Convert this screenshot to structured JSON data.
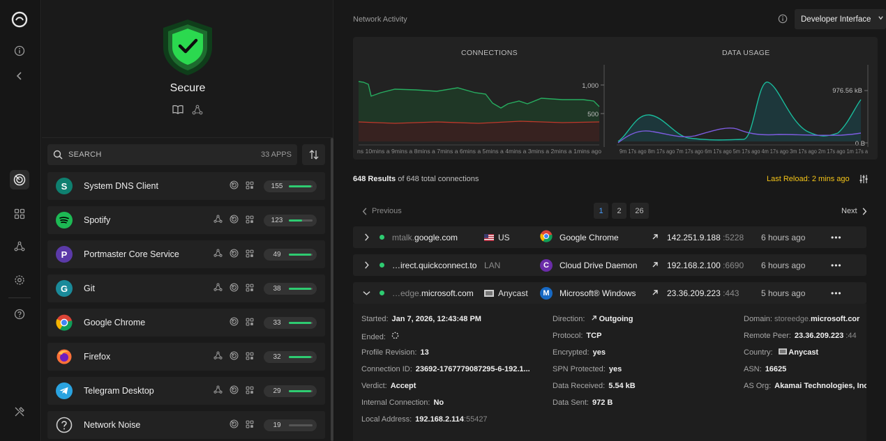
{
  "sidebar": {
    "icons": [
      "logo-icon",
      "info-icon",
      "collapse-icon",
      "monitor-icon",
      "apps-icon",
      "network-icon",
      "settings-icon",
      "help-icon",
      "tools-icon"
    ]
  },
  "panel": {
    "status": "Secure",
    "search_placeholder": "SEARCH",
    "app_count": "33 APPS",
    "apps": [
      {
        "name": "System DNS Client",
        "count": "155",
        "fill": 0.95,
        "letter": "S",
        "color": "#0f8070"
      },
      {
        "name": "Spotify",
        "count": "123",
        "fill": 0.55,
        "letter": "",
        "color": "#1db954"
      },
      {
        "name": "Portmaster Core Service",
        "count": "49",
        "fill": 0.95,
        "letter": "P",
        "color": "#5b3aa8"
      },
      {
        "name": "Git",
        "count": "38",
        "fill": 0.95,
        "letter": "G",
        "color": "#1a8a9a"
      },
      {
        "name": "Google Chrome",
        "count": "33",
        "fill": 0.95,
        "letter": "",
        "color": "#ea4335"
      },
      {
        "name": "Firefox",
        "count": "32",
        "fill": 0.95,
        "letter": "",
        "color": "#ff7139"
      },
      {
        "name": "Telegram Desktop",
        "count": "29",
        "fill": 0.95,
        "letter": "",
        "color": "#2aa3e0"
      },
      {
        "name": "Network Noise",
        "count": "19",
        "fill": 0.0,
        "letter": "?",
        "color": "#333333"
      }
    ]
  },
  "main": {
    "title": "Network Activity",
    "dev_button": "Developer Interface",
    "charts": {
      "connections_title": "CONNECTIONS",
      "data_title": "DATA USAGE",
      "conn_y": [
        "1,000",
        "500"
      ],
      "data_y": [
        "976.56 kB",
        "0 B"
      ],
      "conn_x": "ns 10mins a 9mins a 8mins a 7mins a 6mins a 5mins a 4mins a 3mins a 2mins a 1mins ago",
      "data_x": "9m 17s ago 8m 17s ago 7m 17s ago 6m 17s ago 5m 17s ago 4m 17s ago 3m 17s ago 2m 17s ago 1m 17s a"
    },
    "results_count": "648 Results",
    "results_suffix": "of 648 total connections",
    "last_reload": "Last Reload: 2 mins ago",
    "pager": {
      "prev": "Previous",
      "next": "Next",
      "pages": [
        "1",
        "2",
        "26"
      ]
    },
    "connections": [
      {
        "sub": "mtalk.",
        "domain": "google.com",
        "country": "US",
        "process": "Google Chrome",
        "ip": "142.251.9.188",
        "port": ":5228",
        "time": "6 hours ago"
      },
      {
        "sub": "",
        "domain": "…irect.quickconnect.to",
        "country": "LAN",
        "process": "Cloud Drive Daemon",
        "ip": "192.168.2.100",
        "port": ":6690",
        "time": "6 hours ago"
      },
      {
        "sub": "…edge.",
        "domain": "microsoft.com",
        "country": "Anycast",
        "process": "Microsoft® Windows",
        "ip": "23.36.209.223",
        "port": ":443",
        "time": "5 hours ago"
      }
    ],
    "detail": {
      "started_label": "Started:",
      "started": "Jan 7, 2026, 12:43:48 PM",
      "ended_label": "Ended:",
      "profile_label": "Profile Revision:",
      "profile": "13",
      "connid_label": "Connection ID:",
      "connid": "23692-1767779087295-6-192.1...",
      "verdict_label": "Verdict:",
      "verdict": "Accept",
      "internal_label": "Internal Connection:",
      "internal": "No",
      "local_label": "Local Address:",
      "local": "192.168.2.114",
      "local_port": ":55427",
      "direction_label": "Direction:",
      "direction": "Outgoing",
      "protocol_label": "Protocol:",
      "protocol": "TCP",
      "encrypted_label": "Encrypted:",
      "encrypted": "yes",
      "spn_label": "SPN Protected:",
      "spn": "yes",
      "received_label": "Data Received:",
      "received": "5.54 kB",
      "sent_label": "Data Sent:",
      "sent": "972 B",
      "domain_label": "Domain:",
      "domain_sub": "storeedge.",
      "domain_main": "microsoft.cor",
      "peer_label": "Remote Peer:",
      "peer": "23.36.209.223",
      "peer_port": ":44",
      "country_label": "Country:",
      "country": "Anycast",
      "asn_label": "ASN:",
      "asn": "16625",
      "asorg_label": "AS Org:",
      "asorg": "Akamai Technologies, Inc"
    }
  }
}
